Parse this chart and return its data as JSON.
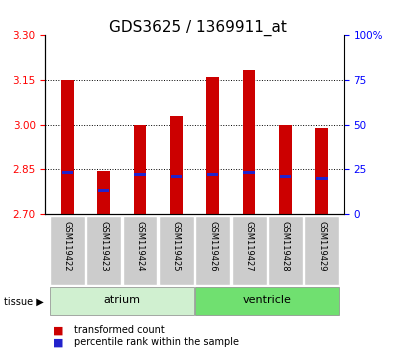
{
  "title": "GDS3625 / 1369911_at",
  "samples": [
    "GSM119422",
    "GSM119423",
    "GSM119424",
    "GSM119425",
    "GSM119426",
    "GSM119427",
    "GSM119428",
    "GSM119429"
  ],
  "red_bar_tops": [
    3.15,
    2.845,
    3.0,
    3.03,
    3.16,
    3.185,
    3.0,
    2.99
  ],
  "blue_marker_vals": [
    2.84,
    2.778,
    2.833,
    2.825,
    2.833,
    2.84,
    2.828,
    2.82
  ],
  "bar_bottom": 2.7,
  "ylim": [
    2.7,
    3.3
  ],
  "y_ticks_left": [
    2.7,
    2.85,
    3.0,
    3.15,
    3.3
  ],
  "y_ticks_right": [
    0,
    25,
    50,
    75,
    100
  ],
  "y_ticks_right_labels": [
    "0",
    "25",
    "50",
    "75",
    "100%"
  ],
  "right_ylim": [
    0,
    100
  ],
  "tissue_groups": [
    {
      "label": "atrium",
      "indices": [
        0,
        1,
        2,
        3
      ],
      "color": "#d0f0d0"
    },
    {
      "label": "ventricle",
      "indices": [
        4,
        5,
        6,
        7
      ],
      "color": "#70e070"
    }
  ],
  "red_color": "#cc0000",
  "blue_color": "#2222cc",
  "bar_width": 0.35,
  "sample_box_color": "#cccccc",
  "legend_items": [
    {
      "color": "#cc0000",
      "label": "transformed count"
    },
    {
      "color": "#2222cc",
      "label": "percentile rank within the sample"
    }
  ],
  "title_fontsize": 11,
  "tick_fontsize": 7.5,
  "tissue_label": "tissue"
}
